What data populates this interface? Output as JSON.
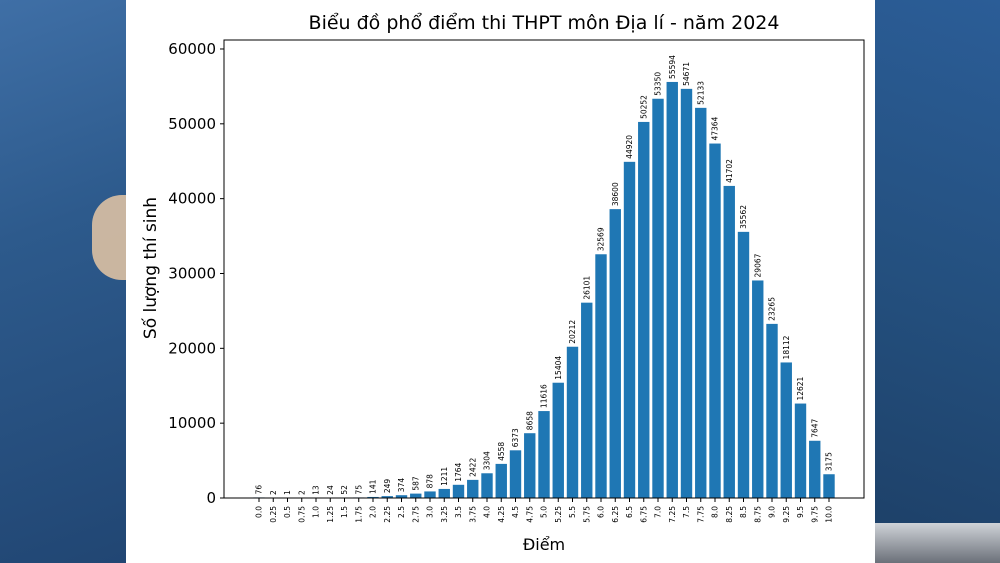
{
  "chart_data": {
    "type": "bar",
    "title": "Biểu đồ phổ điểm thi THPT môn Địa lí - năm 2024",
    "xlabel": "Điểm",
    "ylabel": "Số lượng thí sinh",
    "ylim": [
      0,
      61200
    ],
    "yticks": [
      "0",
      "10000",
      "20000",
      "30000",
      "40000",
      "50000",
      "60000"
    ],
    "ytick_values": [
      0,
      10000,
      20000,
      30000,
      40000,
      50000,
      60000
    ],
    "categories": [
      "0.0",
      "0.25",
      "0.5",
      "0.75",
      "1.0",
      "1.25",
      "1.5",
      "1.75",
      "2.0",
      "2.25",
      "2.5",
      "2.75",
      "3.0",
      "3.25",
      "3.5",
      "3.75",
      "4.0",
      "4.25",
      "4.5",
      "4.75",
      "5.0",
      "5.25",
      "5.5",
      "5.75",
      "6.0",
      "6.25",
      "6.5",
      "6.75",
      "7.0",
      "7.25",
      "7.5",
      "7.75",
      "8.0",
      "8.25",
      "8.5",
      "8.75",
      "9.0",
      "9.25",
      "9.5",
      "9.75",
      "10.0"
    ],
    "values": [
      76,
      2,
      1,
      2,
      13,
      24,
      52,
      75,
      141,
      249,
      374,
      587,
      878,
      1211,
      1764,
      2422,
      3304,
      4558,
      6373,
      8658,
      11616,
      15404,
      20212,
      26101,
      32569,
      38600,
      44920,
      50252,
      53350,
      55594,
      54671,
      52133,
      47364,
      41702,
      35562,
      29067,
      23265,
      18112,
      12621,
      7647,
      3175
    ],
    "bar_color": "#1f77b4",
    "grid": false
  }
}
